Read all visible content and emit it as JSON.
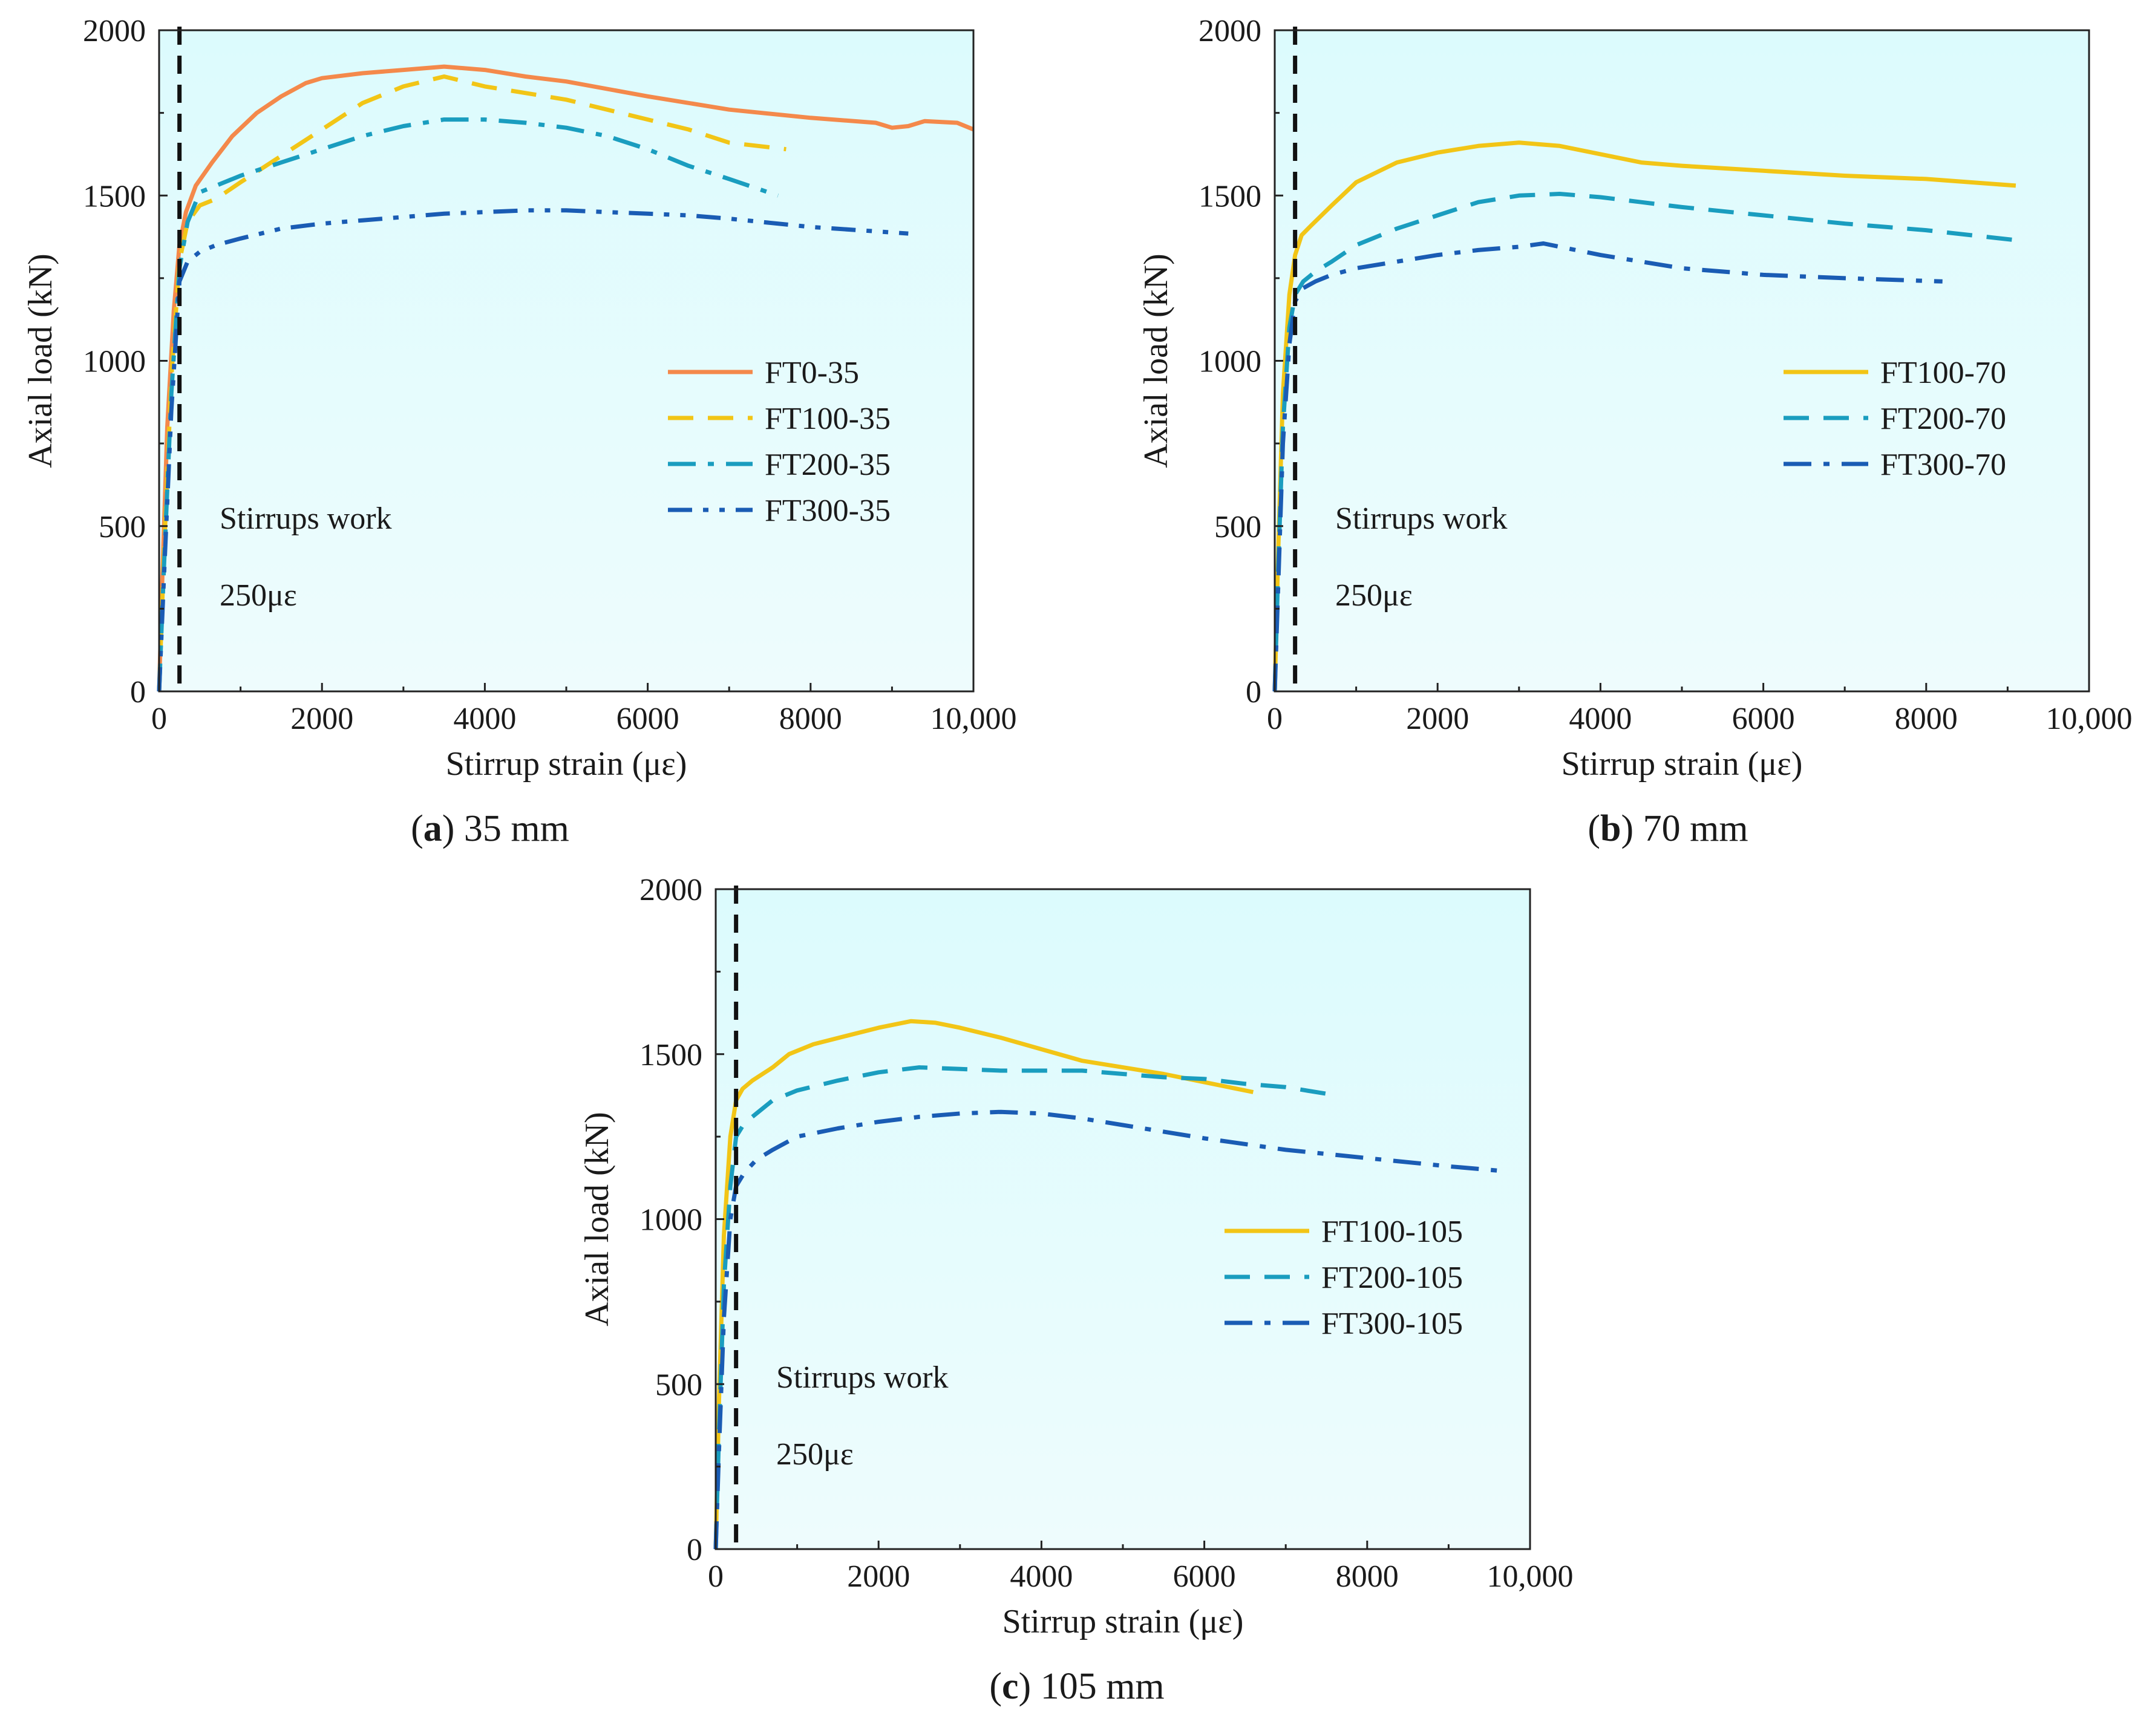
{
  "chart_data": [
    {
      "type": "line",
      "panel": "a",
      "caption": {
        "letter": "(a)",
        "text": " 35 mm"
      },
      "xlabel": "Stirrup strain (με)",
      "ylabel": "Axial load (kN)",
      "xlim": [
        0,
        10000
      ],
      "ylim": [
        0,
        2000
      ],
      "xticks": [
        "0",
        "2000",
        "4000",
        "6000",
        "8000",
        "10,000"
      ],
      "yticks": [
        "0",
        "500",
        "1000",
        "1500",
        "2000"
      ],
      "grid": false,
      "legend_position": "middle-right",
      "reference_line": {
        "x": 250
      },
      "annotations": [
        "Stirrups work",
        "250με"
      ],
      "series": [
        {
          "name": "FT0-35",
          "color": "#f4894b",
          "dash": "solid",
          "x": [
            0,
            40,
            100,
            180,
            250,
            330,
            450,
            650,
            900,
            1200,
            1500,
            1800,
            2000,
            2500,
            3000,
            3500,
            4000,
            4500,
            5000,
            6000,
            7000,
            8000,
            8800,
            9000,
            9200,
            9400,
            9800,
            10000
          ],
          "y": [
            0,
            350,
            800,
            1150,
            1350,
            1450,
            1530,
            1600,
            1680,
            1750,
            1800,
            1840,
            1855,
            1870,
            1880,
            1890,
            1880,
            1860,
            1845,
            1800,
            1760,
            1735,
            1720,
            1705,
            1710,
            1725,
            1720,
            1700
          ]
        },
        {
          "name": "FT100-35",
          "color": "#f2c516",
          "dash": "dashed",
          "x": [
            0,
            60,
            150,
            250,
            350,
            500,
            700,
            1000,
            1500,
            2000,
            2500,
            3000,
            3500,
            4000,
            4500,
            5000,
            5500,
            6000,
            6500,
            7000,
            7700
          ],
          "y": [
            0,
            420,
            950,
            1300,
            1420,
            1470,
            1490,
            1540,
            1620,
            1700,
            1780,
            1830,
            1860,
            1830,
            1810,
            1790,
            1760,
            1730,
            1700,
            1660,
            1640
          ]
        },
        {
          "name": "FT200-35",
          "color": "#1a9dbf",
          "dash": "dashdot",
          "x": [
            0,
            60,
            150,
            250,
            350,
            500,
            700,
            1000,
            1500,
            2000,
            2500,
            3000,
            3500,
            4000,
            4500,
            5000,
            5500,
            6000,
            6500,
            7000,
            7600
          ],
          "y": [
            0,
            380,
            900,
            1280,
            1420,
            1510,
            1530,
            1560,
            1600,
            1640,
            1680,
            1710,
            1730,
            1730,
            1720,
            1705,
            1680,
            1640,
            1590,
            1550,
            1500
          ]
        },
        {
          "name": "FT300-35",
          "color": "#1a5cb4",
          "dash": "dashdotdot",
          "x": [
            0,
            60,
            150,
            250,
            350,
            500,
            700,
            1000,
            1500,
            2000,
            2500,
            3000,
            3500,
            4000,
            4500,
            5000,
            5500,
            6000,
            6500,
            7000,
            8000,
            9200
          ],
          "y": [
            0,
            350,
            850,
            1240,
            1300,
            1330,
            1350,
            1370,
            1400,
            1415,
            1425,
            1435,
            1445,
            1450,
            1455,
            1455,
            1450,
            1445,
            1440,
            1430,
            1405,
            1385
          ]
        }
      ]
    },
    {
      "type": "line",
      "panel": "b",
      "caption": {
        "letter": "(b)",
        "text": " 70 mm"
      },
      "xlabel": "Stirrup strain (με)",
      "ylabel": "Axial load (kN)",
      "xlim": [
        0,
        10000
      ],
      "ylim": [
        0,
        2000
      ],
      "xticks": [
        "0",
        "2000",
        "4000",
        "6000",
        "8000",
        "10,000"
      ],
      "yticks": [
        "0",
        "500",
        "1000",
        "1500",
        "2000"
      ],
      "grid": false,
      "legend_position": "middle-right",
      "reference_line": {
        "x": 250
      },
      "annotations": [
        "Stirrups work",
        "250με"
      ],
      "series": [
        {
          "name": "FT100-70",
          "color": "#f2c516",
          "dash": "solid",
          "x": [
            0,
            40,
            100,
            180,
            250,
            330,
            450,
            700,
            1000,
            1500,
            2000,
            2500,
            3000,
            3500,
            4000,
            4500,
            5000,
            6000,
            7000,
            8000,
            9100
          ],
          "y": [
            0,
            400,
            900,
            1200,
            1320,
            1380,
            1410,
            1470,
            1540,
            1600,
            1630,
            1650,
            1660,
            1650,
            1625,
            1600,
            1590,
            1575,
            1560,
            1550,
            1530
          ]
        },
        {
          "name": "FT200-70",
          "color": "#1a9dbf",
          "dash": "dashed",
          "x": [
            0,
            40,
            100,
            180,
            250,
            350,
            500,
            700,
            1000,
            1500,
            2000,
            2500,
            3000,
            3500,
            4000,
            4500,
            5000,
            6000,
            7000,
            8000,
            9100
          ],
          "y": [
            0,
            350,
            800,
            1100,
            1200,
            1240,
            1270,
            1300,
            1350,
            1400,
            1440,
            1480,
            1500,
            1505,
            1495,
            1480,
            1465,
            1440,
            1415,
            1395,
            1365
          ]
        },
        {
          "name": "FT300-70",
          "color": "#1a5cb4",
          "dash": "dashdot",
          "x": [
            0,
            40,
            100,
            180,
            250,
            350,
            500,
            700,
            1000,
            1500,
            2000,
            2500,
            3000,
            3300,
            3500,
            4000,
            4500,
            5000,
            6000,
            7000,
            8200
          ],
          "y": [
            0,
            300,
            750,
            1050,
            1180,
            1220,
            1240,
            1260,
            1280,
            1300,
            1320,
            1335,
            1345,
            1355,
            1345,
            1320,
            1300,
            1280,
            1260,
            1250,
            1240
          ]
        }
      ]
    },
    {
      "type": "line",
      "panel": "c",
      "caption": {
        "letter": "(c)",
        "text": " 105 mm"
      },
      "xlabel": "Stirrup strain (με)",
      "ylabel": "Axial load (kN)",
      "xlim": [
        0,
        10000
      ],
      "ylim": [
        0,
        2000
      ],
      "xticks": [
        "0",
        "2000",
        "4000",
        "6000",
        "8000",
        "10,000"
      ],
      "yticks": [
        "0",
        "500",
        "1000",
        "1500",
        "2000"
      ],
      "grid": false,
      "legend_position": "middle-right",
      "reference_line": {
        "x": 250
      },
      "annotations": [
        "Stirrups work",
        "250με"
      ],
      "series": [
        {
          "name": "FT100-105",
          "color": "#f2c516",
          "dash": "solid",
          "x": [
            0,
            40,
            100,
            180,
            250,
            330,
            450,
            700,
            900,
            1200,
            1600,
            2000,
            2400,
            2700,
            3000,
            3500,
            4000,
            4500,
            5000,
            5500,
            6000,
            6600
          ],
          "y": [
            0,
            450,
            950,
            1250,
            1360,
            1395,
            1420,
            1460,
            1500,
            1530,
            1555,
            1580,
            1600,
            1595,
            1580,
            1550,
            1515,
            1480,
            1460,
            1440,
            1415,
            1385
          ]
        },
        {
          "name": "FT200-105",
          "color": "#1a9dbf",
          "dash": "dashed",
          "x": [
            0,
            40,
            100,
            180,
            250,
            350,
            500,
            700,
            1000,
            1500,
            2000,
            2500,
            3000,
            3500,
            4000,
            4500,
            5000,
            5500,
            6000,
            6500,
            7000,
            7500
          ],
          "y": [
            0,
            350,
            800,
            1100,
            1250,
            1290,
            1320,
            1360,
            1390,
            1420,
            1445,
            1460,
            1455,
            1450,
            1450,
            1450,
            1440,
            1430,
            1425,
            1410,
            1400,
            1380
          ]
        },
        {
          "name": "FT300-105",
          "color": "#1a5cb4",
          "dash": "dashdot",
          "x": [
            0,
            40,
            100,
            180,
            250,
            350,
            500,
            700,
            1000,
            1500,
            2000,
            2500,
            3000,
            3500,
            4000,
            4500,
            5000,
            5500,
            6000,
            7000,
            8000,
            9000,
            9700
          ],
          "y": [
            0,
            300,
            700,
            1000,
            1100,
            1140,
            1180,
            1210,
            1250,
            1275,
            1295,
            1310,
            1320,
            1325,
            1320,
            1305,
            1285,
            1265,
            1245,
            1210,
            1185,
            1160,
            1145
          ]
        }
      ]
    }
  ]
}
